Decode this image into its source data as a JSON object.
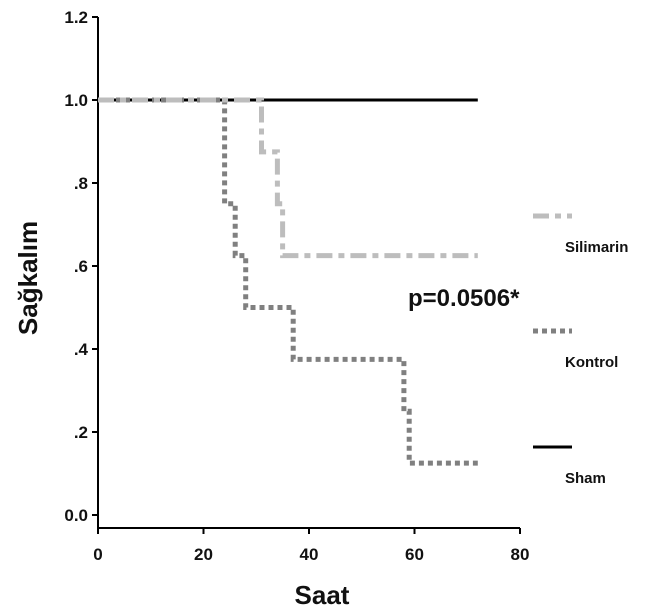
{
  "chart_data": {
    "type": "line",
    "xlabel": "Saat",
    "ylabel": "Sağkalım",
    "xlim": [
      0,
      80
    ],
    "ylim": [
      0,
      1.2
    ],
    "x_ticks": [
      0,
      20,
      40,
      60,
      80
    ],
    "x_tick_labels": [
      "0",
      "20",
      "40",
      "60",
      "80"
    ],
    "y_ticks": [
      0,
      0.2,
      0.4,
      0.6,
      0.8,
      1.0,
      1.2
    ],
    "y_tick_labels": [
      "0.0",
      ".2",
      ".4",
      ".6",
      ".8",
      "1.0",
      "1.2"
    ],
    "grid": false,
    "legend_position": "right",
    "annotation": "p=0.0506*",
    "series": [
      {
        "name": "Silimarin",
        "color": "#bdbdbd",
        "dash": "dash-dot",
        "step_points": [
          [
            0,
            1.0
          ],
          [
            31,
            1.0
          ],
          [
            31,
            0.875
          ],
          [
            34,
            0.875
          ],
          [
            34,
            0.75
          ],
          [
            35,
            0.75
          ],
          [
            35,
            0.625
          ],
          [
            72,
            0.625
          ]
        ]
      },
      {
        "name": "Kontrol",
        "color": "#808080",
        "dash": "dotted",
        "step_points": [
          [
            0,
            1.0
          ],
          [
            24,
            1.0
          ],
          [
            24,
            0.75
          ],
          [
            26,
            0.75
          ],
          [
            26,
            0.625
          ],
          [
            28,
            0.625
          ],
          [
            28,
            0.5
          ],
          [
            37,
            0.5
          ],
          [
            37,
            0.375
          ],
          [
            58,
            0.375
          ],
          [
            58,
            0.25
          ],
          [
            59,
            0.25
          ],
          [
            59,
            0.125
          ],
          [
            72,
            0.125
          ]
        ]
      },
      {
        "name": "Sham",
        "color": "#000000",
        "dash": "solid",
        "step_points": [
          [
            0,
            1.0
          ],
          [
            72,
            1.0
          ]
        ]
      }
    ]
  }
}
